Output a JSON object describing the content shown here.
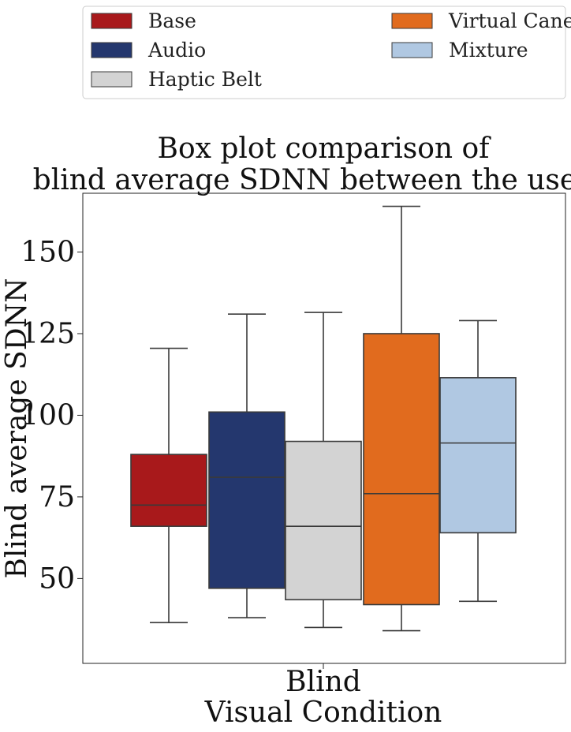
{
  "chart_data": {
    "type": "box",
    "title": [
      "Box plot comparison of",
      "blind average SDNN between the users."
    ],
    "xlabel": "Visual Condition",
    "ylabel": "Blind average SDNN",
    "categories": [
      "Blind"
    ],
    "ylim": [
      24,
      168
    ],
    "yticks": [
      50,
      75,
      100,
      125,
      150
    ],
    "legend_position": "top",
    "series": [
      {
        "name": "Base",
        "color": "#a8191b",
        "whisker_low": 36.5,
        "q1": 66,
        "median": 72.5,
        "q3": 88,
        "whisker_high": 120.5
      },
      {
        "name": "Audio",
        "color": "#24376e",
        "whisker_low": 38,
        "q1": 47,
        "median": 81,
        "q3": 101,
        "whisker_high": 131
      },
      {
        "name": "Haptic Belt",
        "color": "#d3d3d3",
        "whisker_low": 35,
        "q1": 43.5,
        "median": 66,
        "q3": 92,
        "whisker_high": 131.5
      },
      {
        "name": "Virtual Cane",
        "color": "#e16b1e",
        "whisker_low": 34,
        "q1": 42,
        "median": 76,
        "q3": 125,
        "whisker_high": 164
      },
      {
        "name": "Mixture",
        "color": "#b0c8e2",
        "whisker_low": 43,
        "q1": 64,
        "median": 91.5,
        "q3": 111.5,
        "whisker_high": 129
      }
    ]
  }
}
